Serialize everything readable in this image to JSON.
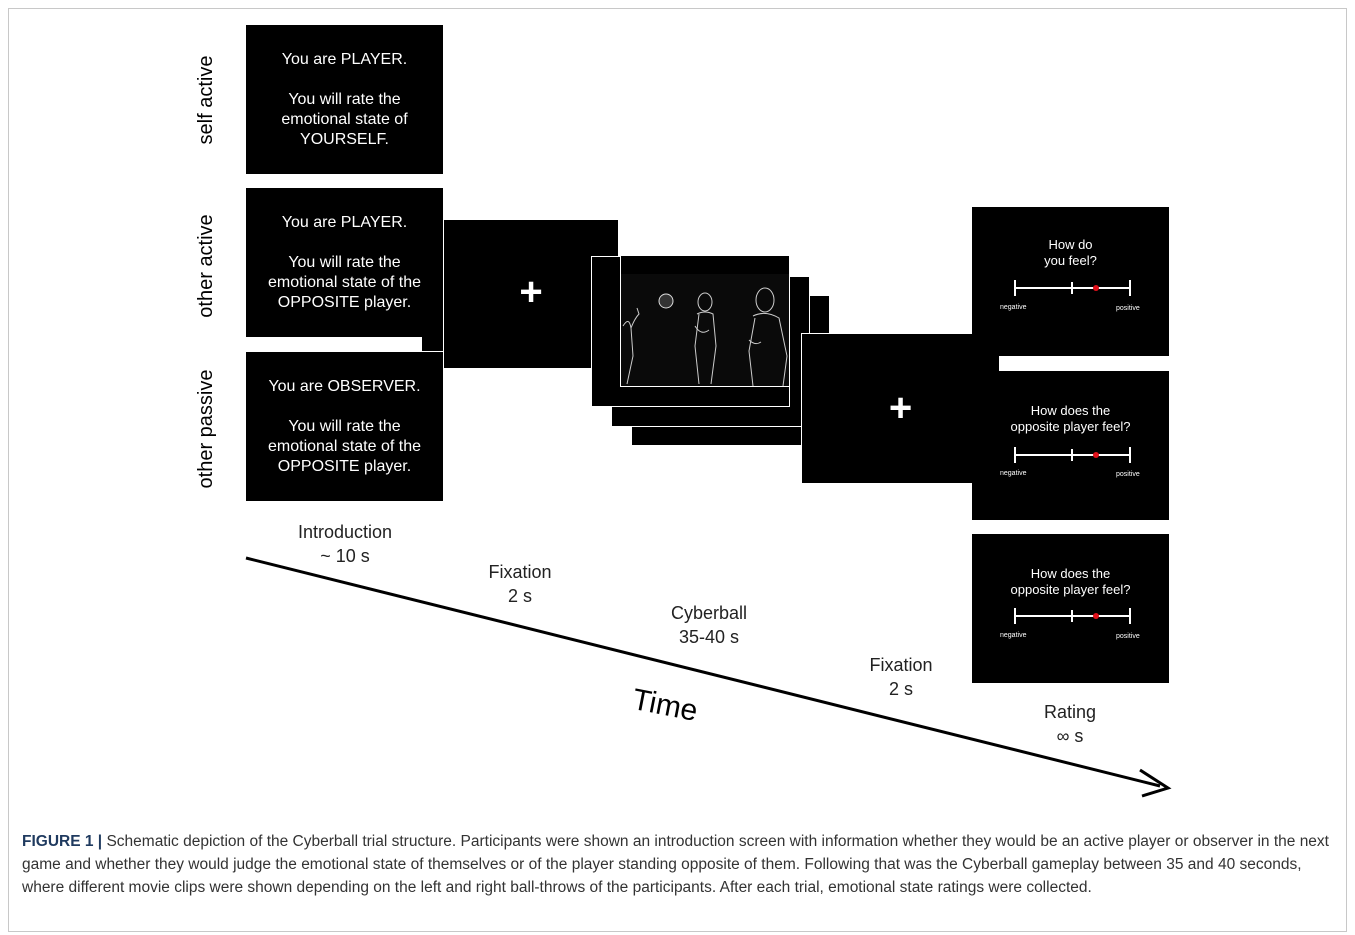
{
  "conditions": {
    "self_active": "self active",
    "other_active": "other active",
    "other_passive": "other passive"
  },
  "intro_screens": [
    {
      "line1": "You are PLAYER.",
      "line2": "You will rate the",
      "line3": "emotional state of",
      "line4": "YOURSELF."
    },
    {
      "line1": "You are PLAYER.",
      "line2": "You will rate the",
      "line3": "emotional state of the",
      "line4": "OPPOSITE player."
    },
    {
      "line1": "You are OBSERVER.",
      "line2": "You will rate the",
      "line3": "emotional state of the",
      "line4": "OPPOSITE player."
    }
  ],
  "fixation_symbol": "+",
  "rating_screens": [
    {
      "q1": "How do",
      "q2": "you feel?",
      "neg": "negative",
      "pos": "positive",
      "marker_position": 0.7
    },
    {
      "q1": "How does the",
      "q2": "opposite player feel?",
      "neg": "negative",
      "pos": "positive",
      "marker_position": 0.7
    },
    {
      "q1": "How does the",
      "q2": "opposite player feel?",
      "neg": "negative",
      "pos": "positive",
      "marker_position": 0.7
    }
  ],
  "steps": {
    "introduction": {
      "name": "Introduction",
      "duration": "~ 10 s"
    },
    "fixation1": {
      "name": "Fixation",
      "duration": "2 s"
    },
    "cyberball": {
      "name": "Cyberball",
      "duration": "35-40 s"
    },
    "fixation2": {
      "name": "Fixation",
      "duration": "2 s"
    },
    "rating": {
      "name": "Rating",
      "duration": "∞ s"
    }
  },
  "time_label": "Time",
  "caption": {
    "label": "FIGURE 1 |",
    "text": " Schematic depiction of the Cyberball trial structure. Participants were shown an introduction screen with information whether they would be an active player or observer in the next game and whether they would judge the emotional state of themselves or of the player standing opposite of them. Following that was the Cyberball gameplay between 35 and 40 seconds, where different movie clips were shown depending on the left and right ball-throws of the participants. After each trial, emotional state ratings were collected."
  },
  "colors": {
    "screen": "#000000",
    "marker": "#e0101a",
    "caption_label": "#1f3a5f"
  }
}
